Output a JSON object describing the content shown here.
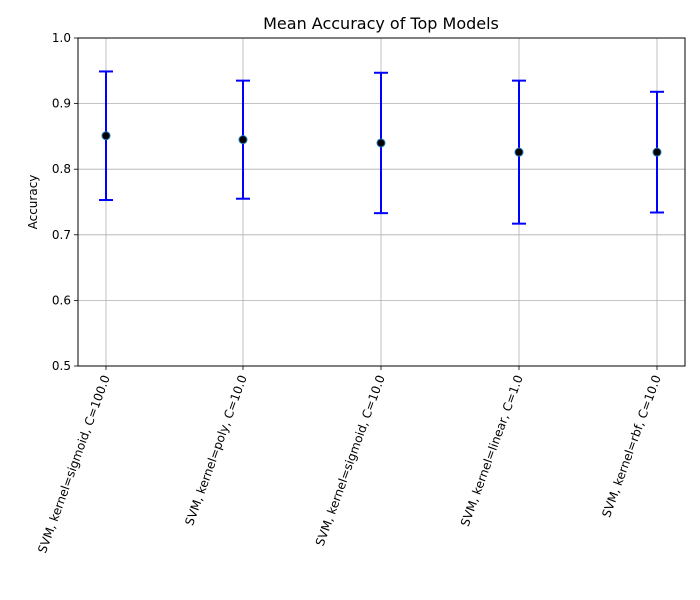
{
  "chart_data": {
    "type": "scatter",
    "title": "Mean Accuracy of Top Models",
    "xlabel": "",
    "ylabel": "Accuracy",
    "ylim": [
      0.5,
      1.0
    ],
    "yticks": [
      "0.5",
      "0.6",
      "0.7",
      "0.8",
      "0.9",
      "1.0"
    ],
    "grid": true,
    "categories": [
      "SVM, kernel=sigmoid, C=100.0",
      "SVM, kernel=poly, C=10.0",
      "SVM, kernel=sigmoid, C=10.0",
      "SVM, kernel=linear, C=1.0",
      "SVM, kernel=rbf, C=10.0"
    ],
    "values": [
      0.851,
      0.845,
      0.84,
      0.826,
      0.826
    ],
    "error": [
      0.098,
      0.09,
      0.107,
      0.109,
      0.092
    ],
    "colors": {
      "errorbar": "#0000ff",
      "marker": "#000000",
      "marker_edge": "#1f77b4",
      "grid": "#b0b0b0"
    }
  }
}
